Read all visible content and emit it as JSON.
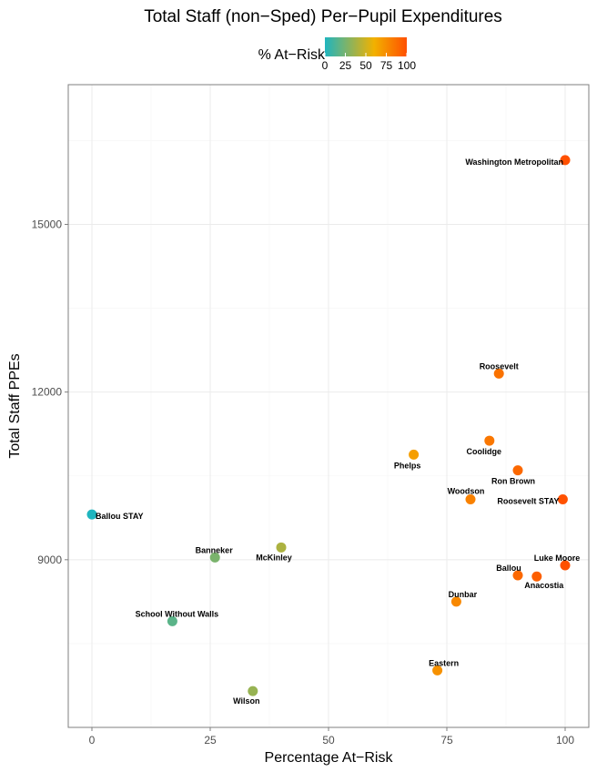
{
  "chart_data": {
    "type": "scatter",
    "title": "Total Staff (non−Sped) Per−Pupil Expenditures",
    "xlabel": "Percentage At−Risk",
    "ylabel": "Total Staff PPEs",
    "xlim": [
      -5,
      105
    ],
    "ylim": [
      6000,
      17500
    ],
    "x_ticks": [
      0,
      25,
      50,
      75,
      100
    ],
    "x_tick_labels": [
      "0",
      "25",
      "50",
      "75",
      "100"
    ],
    "y_ticks": [
      9000,
      12000,
      15000
    ],
    "y_tick_labels": [
      "9000",
      "12000",
      "15000"
    ],
    "grid": true,
    "legend": {
      "title": "% At−Risk",
      "placement": "top",
      "type": "colorbar",
      "range": [
        0,
        100
      ],
      "ticks": [
        0,
        25,
        50,
        75,
        100
      ],
      "tick_labels": [
        "0",
        "25",
        "50",
        "75",
        "100"
      ],
      "colors": [
        "#1fb5bf",
        "#f2b100",
        "#ff5000"
      ]
    },
    "points": [
      {
        "label": "Washington Metropolitan",
        "x": 100,
        "y": 16150
      },
      {
        "label": "Roosevelt",
        "x": 86,
        "y": 12330
      },
      {
        "label": "Coolidge",
        "x": 84,
        "y": 11130
      },
      {
        "label": "Phelps",
        "x": 68,
        "y": 10880
      },
      {
        "label": "Ron Brown",
        "x": 90,
        "y": 10600
      },
      {
        "label": "Woodson",
        "x": 80,
        "y": 10080
      },
      {
        "label": "Roosevelt STAY",
        "x": 99.5,
        "y": 10080
      },
      {
        "label": "Ballou STAY",
        "x": 0,
        "y": 9810
      },
      {
        "label": "McKinley",
        "x": 40,
        "y": 9220
      },
      {
        "label": "Banneker",
        "x": 26,
        "y": 9040
      },
      {
        "label": "Luke Moore",
        "x": 100,
        "y": 8900
      },
      {
        "label": "Ballou",
        "x": 90,
        "y": 8720
      },
      {
        "label": "Anacostia",
        "x": 94,
        "y": 8700
      },
      {
        "label": "Dunbar",
        "x": 77,
        "y": 8250
      },
      {
        "label": "School Without Walls",
        "x": 17,
        "y": 7900
      },
      {
        "label": "Eastern",
        "x": 73,
        "y": 7020
      },
      {
        "label": "Wilson",
        "x": 34,
        "y": 6650
      }
    ]
  }
}
